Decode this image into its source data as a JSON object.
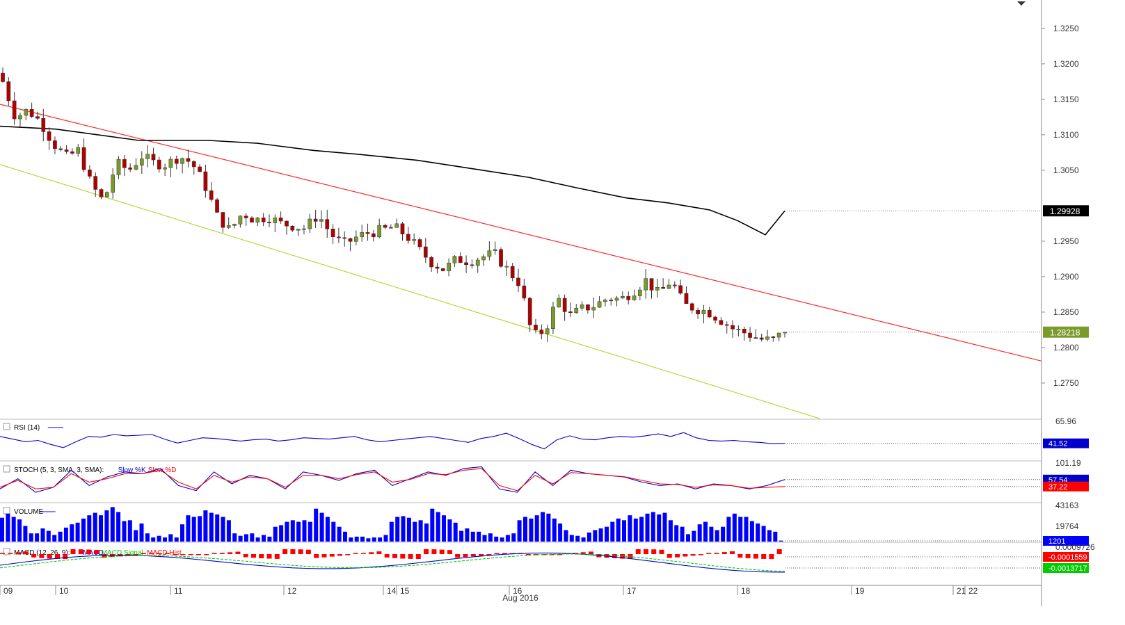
{
  "chart_data": {
    "type": "candlestick",
    "price_axis": {
      "range": [
        1.27,
        1.329
      ],
      "ticks": [
        "1.3250",
        "1.3200",
        "1.3150",
        "1.3100",
        "1.3050",
        "1.2950",
        "1.2900",
        "1.2850",
        "1.2800",
        "1.2750"
      ],
      "tick_values": [
        1.325,
        1.32,
        1.315,
        1.31,
        1.305,
        1.295,
        1.29,
        1.285,
        1.28,
        1.275
      ],
      "price_labels": [
        {
          "text": "1.29928",
          "value": 1.29928,
          "color": "#000000"
        },
        {
          "text": "1.28218",
          "value": 1.28218,
          "color": "#7a9a2a"
        }
      ]
    },
    "time_axis": {
      "labels": [
        "09",
        "10",
        "11",
        "12",
        "14",
        "15",
        "16",
        "17",
        "18",
        "19",
        "21",
        "22"
      ],
      "month_label": "Aug 2016"
    },
    "colors": {
      "bull": "#7a9a2a",
      "bear": "#b00000",
      "ma": "#000000",
      "upper_trend": "#ff2a2a",
      "lower_trend": "#bcd63a",
      "rsi": "#0000cc",
      "stoch_k": "#0000cc",
      "stoch_d": "#ff0000",
      "volume": "#0000ff",
      "macd": "#0000cc",
      "macd_signal": "#00cc00",
      "macd_hist": "#ff0000"
    },
    "candle_close_path": [
      1.3175,
      1.3125,
      1.3135,
      1.3118,
      1.3088,
      1.3068,
      1.3078,
      1.303,
      1.3005,
      1.306,
      1.305,
      1.307,
      1.306,
      1.3058,
      1.307,
      1.306,
      1.303,
      1.2985,
      1.2965,
      1.299,
      1.298,
      1.2985,
      1.2975,
      1.2972,
      1.2968,
      1.2988,
      1.296,
      1.2945,
      1.2955,
      1.2962,
      1.2965,
      1.297,
      1.2958,
      1.2938,
      1.292,
      1.291,
      1.2925,
      1.2922,
      1.2928,
      1.2932,
      1.291,
      1.289,
      1.2815,
      1.2825,
      1.287,
      1.2845,
      1.2855,
      1.286,
      1.287,
      1.2868,
      1.288,
      1.2895,
      1.2875,
      1.2895,
      1.286,
      1.2855,
      1.285,
      1.2838,
      1.2825,
      1.282,
      1.2812,
      1.281,
      1.28218
    ],
    "moving_average": [
      {
        "x": 0,
        "v": 1.3112
      },
      {
        "x": 80,
        "v": 1.3108
      },
      {
        "x": 200,
        "v": 1.3092
      },
      {
        "x": 300,
        "v": 1.3092
      },
      {
        "x": 370,
        "v": 1.3088
      },
      {
        "x": 450,
        "v": 1.3078
      },
      {
        "x": 520,
        "v": 1.3072
      },
      {
        "x": 600,
        "v": 1.3064
      },
      {
        "x": 680,
        "v": 1.3052
      },
      {
        "x": 760,
        "v": 1.304
      },
      {
        "x": 830,
        "v": 1.3025
      },
      {
        "x": 900,
        "v": 1.3011
      },
      {
        "x": 960,
        "v": 1.3004
      },
      {
        "x": 1020,
        "v": 1.2994
      },
      {
        "x": 1060,
        "v": 1.2979
      },
      {
        "x": 1100,
        "v": 1.2959
      },
      {
        "x": 1128,
        "v": 1.29928
      }
    ],
    "upper_trendline": {
      "start": {
        "x": 0,
        "v": 1.3143
      },
      "end": {
        "x": 1497,
        "v": 1.2781
      }
    },
    "lower_trendline": {
      "start": {
        "x": 0,
        "v": 1.3058
      },
      "end": {
        "x": 1178,
        "v": 1.27
      }
    },
    "indicators": [
      {
        "name": "RSI (14)",
        "axis_label": "65.96",
        "last_value": "41.52",
        "last_color": "#0000cc",
        "series": [
          {
            "name": "RSI",
            "values": [
              52,
              48,
              44,
              46,
              40,
              35,
              44,
              52,
              51,
              55,
              53,
              54,
              55,
              48,
              42,
              46,
              50,
              49,
              47,
              45,
              47,
              48,
              45,
              47,
              50,
              49,
              48,
              50,
              52,
              47,
              44,
              46,
              48,
              50,
              52,
              49,
              46,
              43,
              49,
              52,
              57,
              49,
              40,
              33,
              47,
              53,
              48,
              47,
              50,
              52,
              51,
              53,
              56,
              52,
              58,
              50,
              46,
              45,
              46,
              44,
              43,
              41,
              41.52
            ]
          }
        ]
      },
      {
        "name": "STOCH (5, 3, SMA, 3, SMA):",
        "axis_label": "101.19",
        "series": [
          {
            "name": "Slow %K",
            "color": "#0000cc",
            "last_value": "57.54",
            "values": [
              30,
              60,
              20,
              35,
              85,
              40,
              65,
              80,
              75,
              90,
              40,
              25,
              80,
              45,
              70,
              60,
              30,
              80,
              70,
              55,
              75,
              85,
              40,
              60,
              80,
              70,
              90,
              95,
              30,
              20,
              80,
              40,
              85,
              75,
              70,
              65,
              50,
              40,
              45,
              30,
              45,
              40,
              30,
              40,
              57.54
            ]
          },
          {
            "name": "Slow %D",
            "color": "#ff0000",
            "last_value": "37.22",
            "values": [
              35,
              55,
              30,
              35,
              75,
              50,
              60,
              75,
              75,
              85,
              50,
              30,
              70,
              50,
              65,
              60,
              35,
              70,
              70,
              60,
              72,
              80,
              50,
              58,
              75,
              72,
              85,
              90,
              40,
              25,
              70,
              45,
              78,
              75,
              70,
              66,
              55,
              45,
              43,
              35,
              42,
              40,
              32,
              35,
              37.22
            ]
          }
        ]
      },
      {
        "name": "VOLUME",
        "axis_label": "43163",
        "axis_label_2": "19764",
        "last_value": "1201",
        "last_color": "#0000ff",
        "series": [
          {
            "name": "Volume",
            "values": [
              29000,
              34000,
              30000,
              27000,
              19000,
              10000,
              10000,
              16000,
              13000,
              8000,
              12000,
              17000,
              21000,
              23000,
              28000,
              32000,
              35000,
              32000,
              38000,
              42000,
              36000,
              25000,
              26000,
              14000,
              22000,
              10000,
              5000,
              7000,
              5000,
              9000,
              5000,
              21000,
              32000,
              30000,
              31000,
              38000,
              35000,
              33000,
              30000,
              26000,
              10000,
              7000,
              9000,
              10000,
              5000,
              8000,
              6000,
              18000,
              20000,
              24000,
              26000,
              24000,
              26000,
              24000,
              40000,
              35000,
              30000,
              24000,
              18000,
              12000,
              5000,
              6000,
              6000,
              4000,
              5000,
              5000,
              8000,
              24000,
              30000,
              31000,
              29000,
              24000,
              26000,
              22000,
              40000,
              36000,
              32000,
              27000,
              23000,
              13000,
              16000,
              12000,
              12000,
              8000,
              10000,
              6000,
              5000,
              8000,
              10000,
              26000,
              30000,
              28000,
              32000,
              36000,
              34000,
              28000,
              22000,
              14000,
              8000,
              7000,
              5000,
              11000,
              14000,
              16000,
              18000,
              24000,
              28000,
              26000,
              32000,
              28000,
              30000,
              34000,
              36000,
              33000,
              35000,
              26000,
              20000,
              18000,
              9000,
              13000,
              21000,
              24000,
              18000,
              14000,
              18000,
              30000,
              34000,
              30000,
              30000,
              25000,
              22000,
              19000,
              14000,
              12000,
              1201
            ]
          }
        ]
      },
      {
        "name": "MACD (12, 26, 9):",
        "axis_label": "0.0009726",
        "series": [
          {
            "name": "MACD",
            "color": "#0000cc",
            "last_value": "-0.0013717",
            "last_color": "#00cc00"
          },
          {
            "name": "MACD Signal",
            "color": "#00cc00",
            "last_value": "-0.0001559",
            "last_color": "#ff0000"
          },
          {
            "name": "MACD Hist",
            "color": "#ff0000"
          }
        ]
      }
    ]
  }
}
